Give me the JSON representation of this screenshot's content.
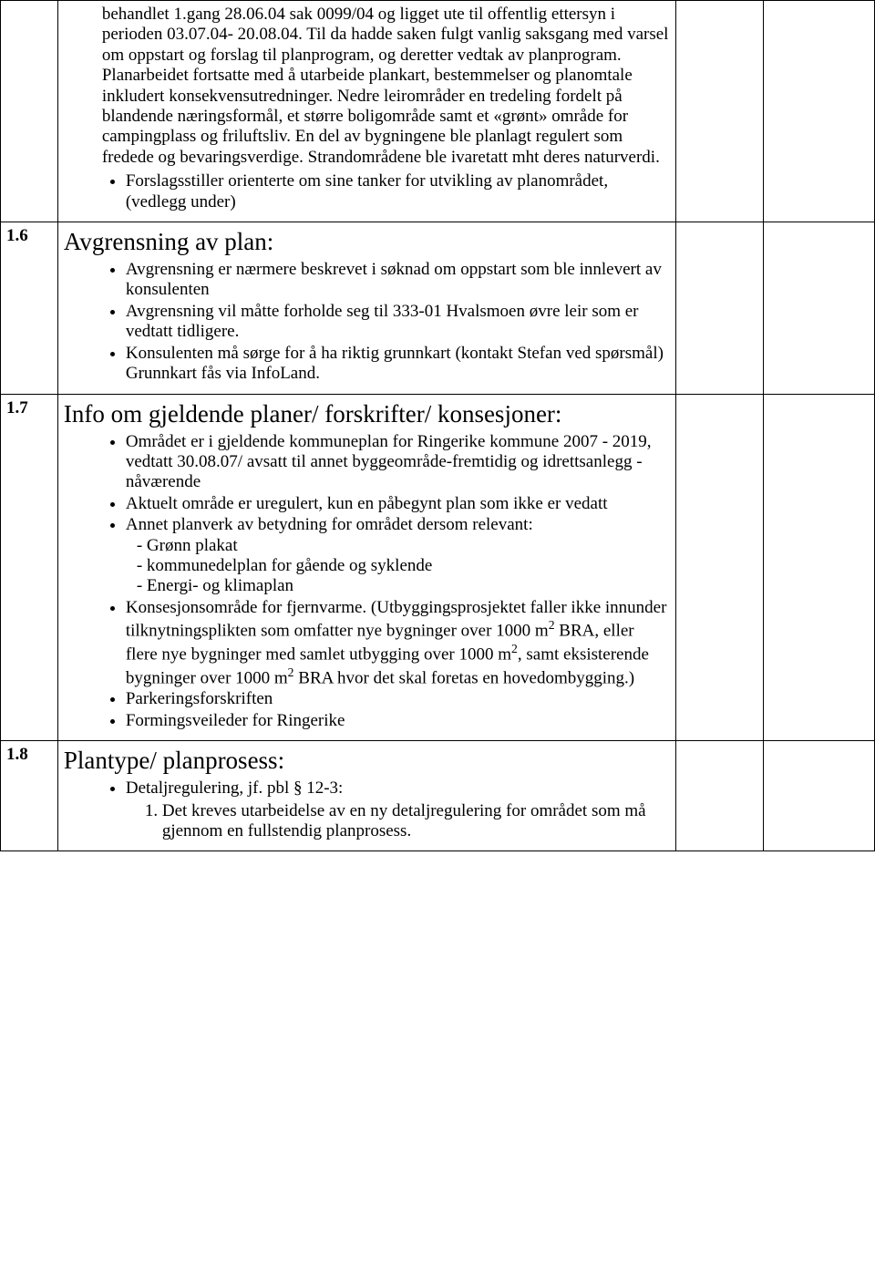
{
  "rows": [
    {
      "num": "",
      "continuation": "behandlet 1.gang 28.06.04 sak 0099/04 og ligget ute til offentlig ettersyn i perioden 03.07.04- 20.08.04. Til da hadde saken fulgt vanlig saksgang med varsel om oppstart og forslag til planprogram, og deretter vedtak av planprogram. Planarbeidet fortsatte med å utarbeide plankart, bestemmelser og planomtale inkludert konsekvensutredninger. Nedre leirområder en tredeling fordelt på blandende næringsformål, et større boligområde samt et «grønt» område for campingplass og friluftsliv. En del av bygningene ble planlagt regulert som fredede og bevaringsverdige. Strandområdene ble ivaretatt mht deres naturverdi.",
      "bullets": [
        "Forslagsstiller orienterte om sine tanker for utvikling av planområdet, (vedlegg under)"
      ]
    },
    {
      "num": "1.6",
      "title": "Avgrensning av plan:",
      "bullets": [
        "Avgrensning er nærmere beskrevet i søknad om oppstart som ble innlevert av konsulenten",
        "Avgrensning vil måtte forholde seg til  333-01 Hvalsmoen øvre leir som er vedtatt  tidligere.",
        "Konsulenten må sørge for å ha riktig grunnkart (kontakt Stefan ved spørsmål) Grunnkart fås via InfoLand."
      ]
    },
    {
      "num": "1.7",
      "title": "Info om gjeldende planer/ forskrifter/ konsesjoner:",
      "bullets": [
        "Området er i gjeldende kommuneplan for Ringerike kommune 2007 - 2019, vedtatt 30.08.07/  avsatt til annet byggeområde-fremtidig og idrettsanlegg - nåværende",
        "Aktuelt område er uregulert, kun en påbegynt plan som ikke er vedatt",
        {
          "text": "Annet planverk av betydning for området dersom relevant:",
          "subs": [
            "- Grønn plakat",
            "- kommunedelplan for gående og syklende",
            "- Energi- og klimaplan"
          ]
        },
        {
          "html": "Konsesjonsområde for fjernvarme. (Utbyggingsprosjektet faller ikke innunder tilknytningsplikten som omfatter nye bygninger over 1000 m<span class=\"sup\">2</span> BRA, eller flere nye bygninger med samlet utbygging over 1000 m<span class=\"sup\">2</span>, samt eksisterende bygninger over 1000 m<span class=\"sup\">2</span> BRA hvor det skal foretas en hovedombygging.)"
        },
        "Parkeringsforskriften",
        "Formingsveileder for Ringerike"
      ]
    },
    {
      "num": "1.8",
      "title": "Plantype/ planprosess:",
      "bullets": [
        {
          "text": "Detaljregulering, jf. pbl § 12-3:",
          "numbered": [
            "Det kreves utarbeidelse av en ny detaljregulering for området som må gjennom en fullstendig planprosess."
          ]
        }
      ]
    }
  ]
}
